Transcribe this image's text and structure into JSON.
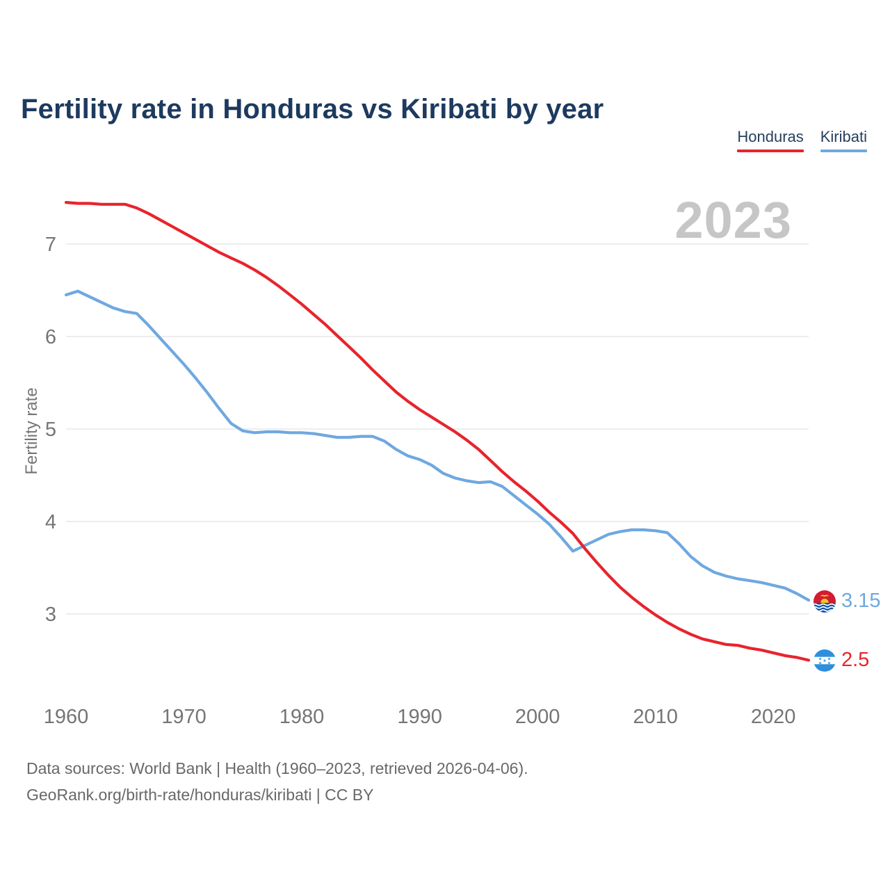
{
  "page": {
    "title": "Fertility rate in Honduras vs Kiribati by year",
    "watermark": "2023",
    "footer_line1": "Data sources: World Bank | Health (1960–2023, retrieved 2026-04-06).",
    "footer_line2": "GeoRank.org/birth-rate/honduras/kiribati | CC BY"
  },
  "legend": {
    "items": [
      {
        "label": "Honduras",
        "color": "#e8242c"
      },
      {
        "label": "Kiribati",
        "color": "#6fa8e0"
      }
    ]
  },
  "end_labels": {
    "kiribati": {
      "value": "3.15",
      "flag": "kiribati-flag"
    },
    "honduras": {
      "value": "2.5",
      "flag": "honduras-flag"
    }
  },
  "chart_data": {
    "type": "line",
    "title": "Fertility rate in Honduras vs Kiribati by year",
    "xlabel": "",
    "ylabel": "Fertility rate",
    "grid": "horizontal",
    "legend_position": "top-right",
    "yticks": [
      7,
      6,
      5,
      4,
      3
    ],
    "xticks": [
      1960,
      1970,
      1980,
      1990,
      2000,
      2010,
      2020
    ],
    "ylim": [
      2.3,
      7.6
    ],
    "xlim": [
      1960,
      2023
    ],
    "x": [
      1960,
      1961,
      1962,
      1963,
      1964,
      1965,
      1966,
      1967,
      1968,
      1969,
      1970,
      1971,
      1972,
      1973,
      1974,
      1975,
      1976,
      1977,
      1978,
      1979,
      1980,
      1981,
      1982,
      1983,
      1984,
      1985,
      1986,
      1987,
      1988,
      1989,
      1990,
      1991,
      1992,
      1993,
      1994,
      1995,
      1996,
      1997,
      1998,
      1999,
      2000,
      2001,
      2002,
      2003,
      2004,
      2005,
      2006,
      2007,
      2008,
      2009,
      2010,
      2011,
      2012,
      2013,
      2014,
      2015,
      2016,
      2017,
      2018,
      2019,
      2020,
      2021,
      2022,
      2023
    ],
    "series": [
      {
        "name": "Honduras",
        "color": "#e8242c",
        "end_value": 2.5,
        "values": [
          7.45,
          7.44,
          7.44,
          7.43,
          7.43,
          7.43,
          7.39,
          7.33,
          7.26,
          7.19,
          7.12,
          7.05,
          6.98,
          6.91,
          6.85,
          6.79,
          6.72,
          6.64,
          6.55,
          6.45,
          6.35,
          6.24,
          6.13,
          6.01,
          5.89,
          5.77,
          5.64,
          5.52,
          5.4,
          5.3,
          5.21,
          5.13,
          5.05,
          4.97,
          4.88,
          4.78,
          4.66,
          4.54,
          4.43,
          4.33,
          4.22,
          4.1,
          3.99,
          3.87,
          3.71,
          3.56,
          3.42,
          3.29,
          3.18,
          3.08,
          2.99,
          2.91,
          2.84,
          2.78,
          2.73,
          2.7,
          2.67,
          2.66,
          2.63,
          2.61,
          2.58,
          2.55,
          2.53,
          2.5
        ]
      },
      {
        "name": "Kiribati",
        "color": "#6fa8e0",
        "end_value": 3.15,
        "values": [
          6.45,
          6.49,
          6.43,
          6.37,
          6.31,
          6.27,
          6.25,
          6.12,
          5.98,
          5.84,
          5.7,
          5.55,
          5.39,
          5.22,
          5.06,
          4.98,
          4.96,
          4.97,
          4.97,
          4.96,
          4.96,
          4.95,
          4.93,
          4.91,
          4.91,
          4.92,
          4.92,
          4.87,
          4.78,
          4.71,
          4.67,
          4.61,
          4.52,
          4.47,
          4.44,
          4.42,
          4.43,
          4.38,
          4.28,
          4.18,
          4.08,
          3.97,
          3.83,
          3.68,
          3.74,
          3.8,
          3.86,
          3.89,
          3.91,
          3.91,
          3.9,
          3.88,
          3.76,
          3.62,
          3.52,
          3.45,
          3.41,
          3.38,
          3.36,
          3.34,
          3.31,
          3.28,
          3.22,
          3.15
        ]
      }
    ]
  }
}
